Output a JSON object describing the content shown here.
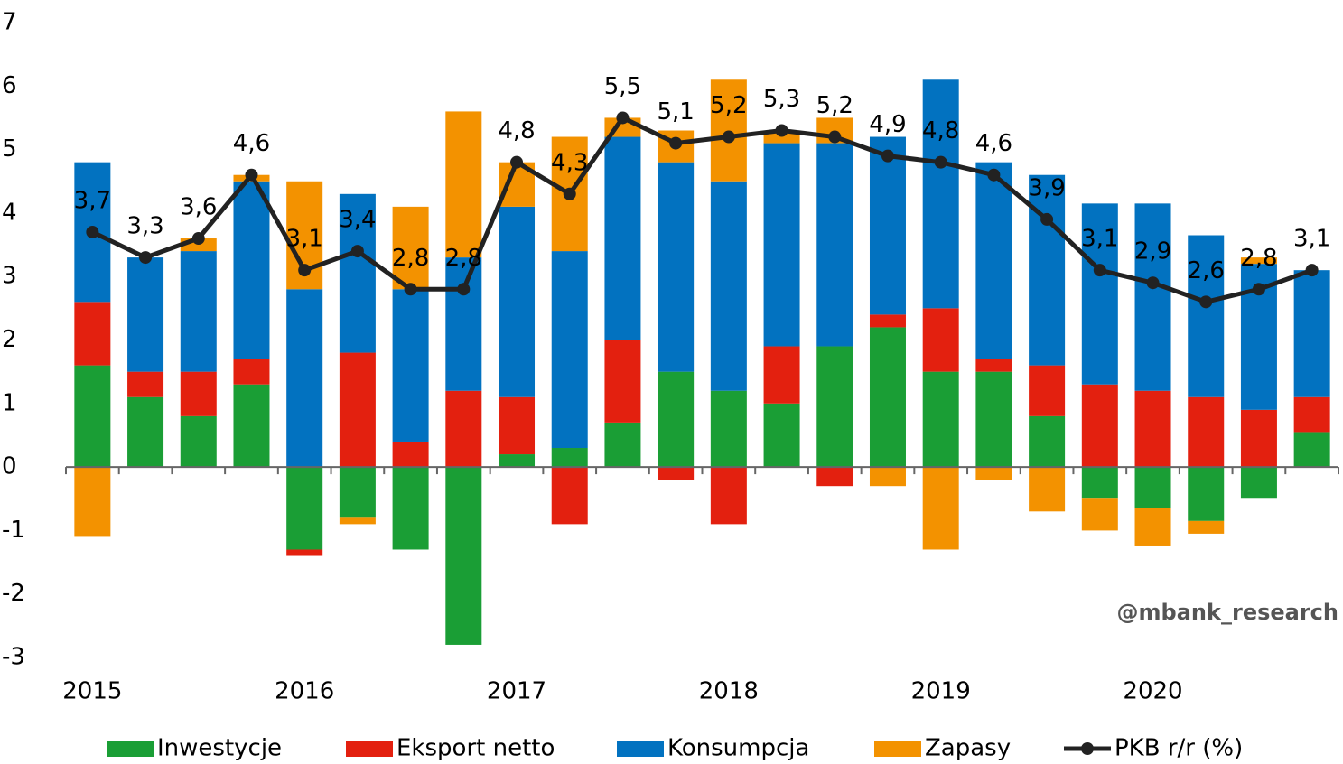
{
  "chart_data": {
    "type": "bar",
    "stacked": true,
    "categories": [
      "2015",
      null,
      null,
      null,
      "2016",
      null,
      null,
      null,
      "2017",
      null,
      null,
      null,
      "2018",
      null,
      null,
      null,
      "2019",
      null,
      null,
      null,
      "2020",
      null,
      null,
      null
    ],
    "series": [
      {
        "name": "Inwestycje",
        "color": "#1a9e35",
        "values": [
          1.6,
          1.1,
          0.8,
          1.3,
          -1.3,
          -0.8,
          -1.3,
          -2.8,
          0.2,
          0.3,
          0.7,
          1.5,
          1.2,
          1.0,
          1.9,
          2.2,
          1.5,
          1.5,
          0.8,
          -0.5,
          -0.65,
          -0.85,
          -0.5,
          0.55
        ]
      },
      {
        "name": "Eksport netto",
        "color": "#e3200f",
        "values": [
          1.0,
          0.4,
          0.7,
          0.4,
          -0.1,
          1.8,
          0.4,
          1.2,
          0.9,
          -0.9,
          1.3,
          -0.2,
          -0.9,
          0.9,
          -0.3,
          0.2,
          1.0,
          0.2,
          0.8,
          1.3,
          1.2,
          1.1,
          0.9,
          0.55
        ]
      },
      {
        "name": "Konsumpcja",
        "color": "#0272c0",
        "values": [
          2.2,
          1.8,
          1.9,
          2.8,
          2.8,
          2.5,
          2.4,
          2.1,
          3.0,
          3.1,
          3.2,
          3.3,
          3.3,
          3.2,
          3.2,
          2.8,
          3.6,
          3.1,
          3.0,
          2.85,
          2.95,
          2.55,
          2.3,
          2.0
        ]
      },
      {
        "name": "Zapasy",
        "color": "#f39200",
        "values": [
          -1.1,
          0,
          0.2,
          0.1,
          1.7,
          -0.1,
          1.3,
          2.3,
          0.7,
          1.8,
          0.3,
          0.5,
          1.6,
          0.2,
          0.4,
          -0.3,
          -1.3,
          -0.2,
          -0.7,
          -0.5,
          -0.6,
          -0.2,
          0.1,
          0
        ]
      },
      {
        "name": "PKB r/r (%)",
        "color": "#222222",
        "type": "line",
        "values": [
          3.7,
          3.3,
          3.6,
          4.6,
          3.1,
          3.4,
          2.8,
          2.8,
          4.8,
          4.3,
          5.5,
          5.1,
          5.2,
          5.3,
          5.2,
          4.9,
          4.8,
          4.6,
          3.9,
          3.1,
          2.9,
          2.6,
          2.8,
          3.1
        ],
        "value_labels": [
          "3,7",
          "3,3",
          "3,6",
          "4,6",
          "3,1",
          "3,4",
          "2,8",
          "2,8",
          "4,8",
          "4,3",
          "5,5",
          "5,1",
          "5,2",
          "5,3",
          "5,2",
          "4,9",
          "4,8",
          "4,6",
          "3,9",
          "3,1",
          "2,9",
          "2,6",
          "2,8",
          "3,1"
        ]
      }
    ],
    "ylim": [
      -3,
      7
    ],
    "yticks": [
      -3,
      -2,
      -1,
      0,
      1,
      2,
      3,
      4,
      5,
      6,
      7
    ],
    "annotation": "@mbank_research",
    "legend": "bottom"
  }
}
